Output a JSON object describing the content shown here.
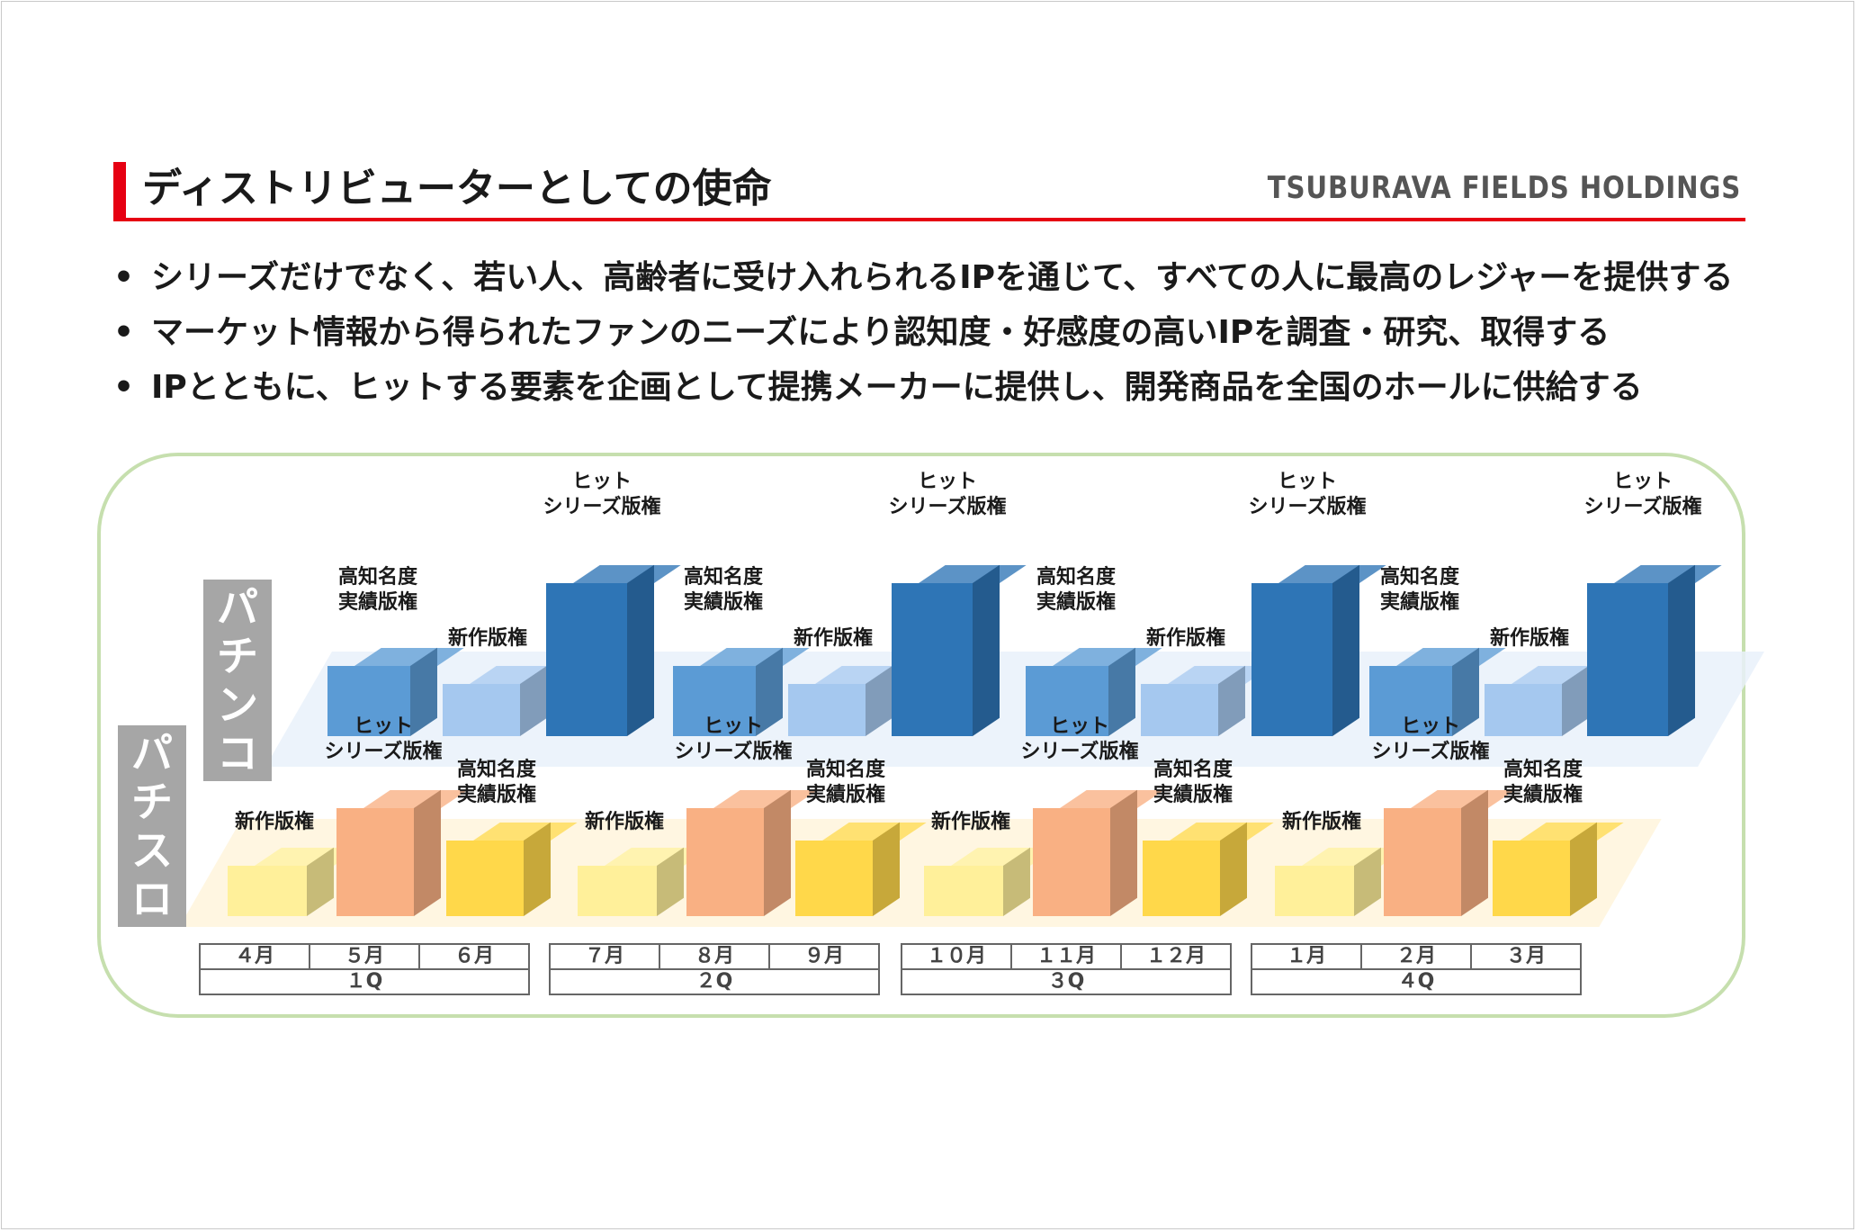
{
  "header": {
    "title": "ディストリビューターとしての使命",
    "brand": "TSUBURAVA FIELDS HOLDINGS"
  },
  "bullets": [
    "シリーズだけでなく、若い人、高齢者に受け入れられるIPを通じて、すべての人に最高のレジャーを提供する",
    "マーケット情報から得られたファンのニーズにより認知度・好感度の高いIPを調査・研究、取得する",
    "IPとともに、ヒットする要素を企画として提携メーカーに提供し、開発商品を全国のホールに供給する"
  ],
  "rows": {
    "pachinko": {
      "label": "パチンコ",
      "label_chars": [
        "パ",
        "チ",
        "ン",
        "コ"
      ]
    },
    "pachislo": {
      "label": "パチスロ",
      "label_chars": [
        "パ",
        "チ",
        "ス",
        "ロ"
      ]
    }
  },
  "categories": {
    "hit_series": [
      "ヒット",
      "シリーズ版権"
    ],
    "high_recognition": [
      "高知名度",
      "実績版権"
    ],
    "new_work": [
      "新作版権"
    ]
  },
  "colors": {
    "accent": "#e60012",
    "panel_border": "#c6dfae",
    "pachinko_hit": "#2e75b6",
    "pachinko_high": "#5b9bd5",
    "pachinko_new": "#a5c8ef",
    "pachislo_hit": "#f9b083",
    "pachislo_high": "#ffd84a",
    "pachislo_new": "#fff09a"
  },
  "timeline": {
    "months": [
      "４月",
      "５月",
      "６月",
      "７月",
      "８月",
      "９月",
      "１０月",
      "１１月",
      "１２月",
      "１月",
      "２月",
      "３月"
    ],
    "quarters": [
      "１Q",
      "２Q",
      "３Q",
      "４Q"
    ]
  }
}
